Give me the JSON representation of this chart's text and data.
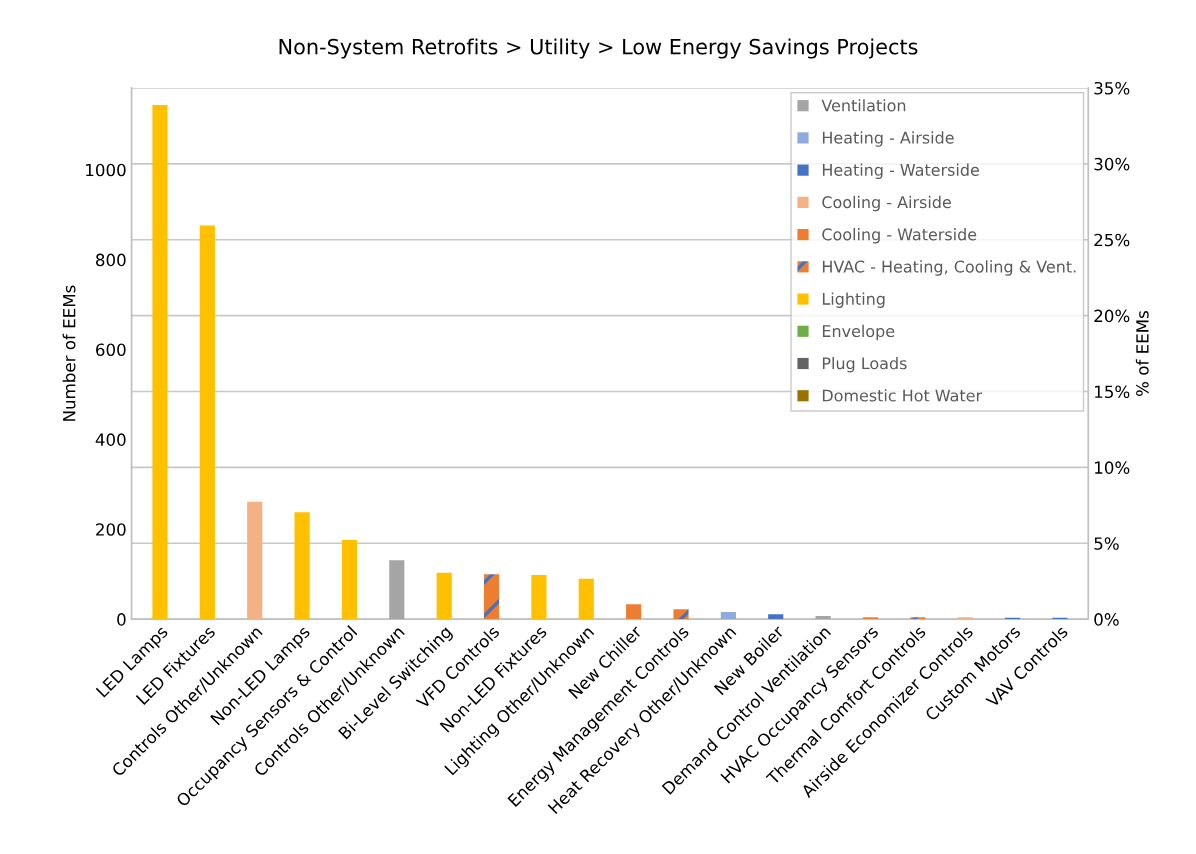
{
  "chart_data": {
    "type": "bar",
    "title": "Non-System Retrofits > Utility > Low Energy Savings Projects",
    "ylabel": "Number of EEMs",
    "y2label": "% of EEMs",
    "categories": [
      "LED Lamps",
      "LED Fixtures",
      "Controls Other/Unknown",
      "Non-LED Lamps",
      "Occupancy Sensors & Control",
      "Controls Other/Unknown",
      "Bi-Level Switching",
      "VFD Controls",
      "Non-LED Fixtures",
      "Lighting Other/Unknown",
      "New Chiller",
      "Energy Management Controls",
      "Heat Recovery Other/Unknown",
      "New Boiler",
      "Demand Control Ventilation",
      "HVAC Occupancy Sensors",
      "Thermal Comfort Controls",
      "Airside Economizer Controls",
      "Custom Motors",
      "VAV Controls"
    ],
    "stacked": true,
    "series": [
      {
        "name": "Ventilation",
        "color": "#a5a5a5",
        "values": [
          null,
          null,
          null,
          null,
          null,
          131,
          null,
          null,
          null,
          null,
          null,
          null,
          null,
          null,
          7,
          null,
          null,
          null,
          null,
          null
        ]
      },
      {
        "name": "Heating - Airside",
        "color": "#8faadc",
        "values": [
          null,
          null,
          null,
          null,
          null,
          null,
          null,
          null,
          null,
          null,
          null,
          null,
          16,
          null,
          null,
          null,
          null,
          null,
          null,
          null
        ]
      },
      {
        "name": "Heating - Waterside",
        "color": "#4472c4",
        "values": [
          null,
          null,
          null,
          null,
          null,
          null,
          null,
          null,
          null,
          null,
          null,
          null,
          null,
          11,
          null,
          null,
          null,
          null,
          3,
          3
        ]
      },
      {
        "name": "Cooling - Airside",
        "color": "#f4b183",
        "values": [
          null,
          null,
          261,
          null,
          null,
          null,
          null,
          null,
          null,
          null,
          null,
          null,
          null,
          null,
          null,
          null,
          null,
          4,
          null,
          null
        ]
      },
      {
        "name": "Cooling - Waterside",
        "color": "#ed7d31",
        "values": [
          null,
          null,
          null,
          null,
          null,
          null,
          null,
          null,
          null,
          null,
          33,
          null,
          null,
          null,
          null,
          null,
          null,
          null,
          null,
          null
        ]
      },
      {
        "name": "HVAC - Heating, Cooling & Vent.",
        "color": "#ed7d31",
        "values": [
          null,
          null,
          null,
          null,
          null,
          null,
          null,
          100,
          null,
          null,
          null,
          22,
          null,
          null,
          null,
          4,
          4,
          null,
          null,
          null
        ]
      },
      {
        "name": "Lighting",
        "color": "#ffc000",
        "values": [
          1144,
          876,
          null,
          238,
          176,
          null,
          103,
          null,
          98,
          90,
          null,
          null,
          null,
          null,
          null,
          null,
          null,
          null,
          null,
          null
        ]
      },
      {
        "name": "Envelope",
        "color": "#70ad47",
        "values": [
          null,
          null,
          null,
          null,
          null,
          null,
          null,
          null,
          null,
          null,
          null,
          null,
          null,
          null,
          null,
          null,
          null,
          null,
          null,
          null
        ]
      },
      {
        "name": "Plug Loads",
        "color": "#636363",
        "values": [
          null,
          null,
          null,
          null,
          null,
          null,
          null,
          null,
          null,
          null,
          null,
          null,
          null,
          null,
          null,
          null,
          null,
          null,
          null,
          null
        ]
      },
      {
        "name": "Domestic Hot Water",
        "color": "#997300",
        "values": [
          null,
          null,
          null,
          null,
          null,
          null,
          null,
          null,
          null,
          null,
          null,
          null,
          null,
          null,
          null,
          null,
          null,
          null,
          null,
          null
        ]
      }
    ],
    "ylim": [
      0,
      1182
    ],
    "yticks": [
      0,
      200,
      400,
      600,
      800,
      1000
    ],
    "y2lim": [
      0,
      35
    ],
    "y2ticks": [
      {
        "value": 0,
        "label": "0%"
      },
      {
        "value": 5,
        "label": "5%"
      },
      {
        "value": 10,
        "label": "10%"
      },
      {
        "value": 15,
        "label": "15%"
      },
      {
        "value": 20,
        "label": "20%"
      },
      {
        "value": 25,
        "label": "25%"
      },
      {
        "value": 30,
        "label": "30%"
      },
      {
        "value": 35,
        "label": "35%"
      }
    ],
    "grid": "y2",
    "legend": "top right"
  }
}
